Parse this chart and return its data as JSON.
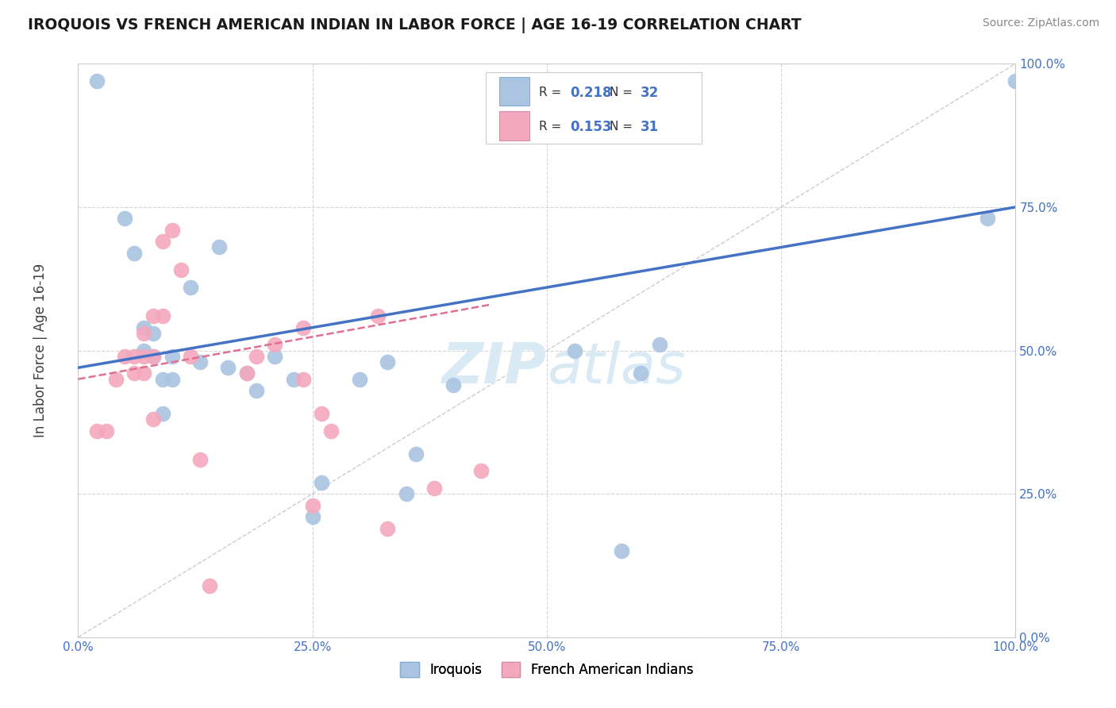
{
  "title": "IROQUOIS VS FRENCH AMERICAN INDIAN IN LABOR FORCE | AGE 16-19 CORRELATION CHART",
  "source": "Source: ZipAtlas.com",
  "ylabel": "In Labor Force | Age 16-19",
  "xlim": [
    0.0,
    1.0
  ],
  "ylim": [
    0.0,
    1.0
  ],
  "xticks": [
    0.0,
    0.25,
    0.5,
    0.75,
    1.0
  ],
  "yticks": [
    0.0,
    0.25,
    0.5,
    0.75,
    1.0
  ],
  "xticklabels": [
    "0.0%",
    "25.0%",
    "50.0%",
    "75.0%",
    "100.0%"
  ],
  "yticklabels": [
    "0.0%",
    "25.0%",
    "50.0%",
    "75.0%",
    "100.0%"
  ],
  "r_iroquois": 0.218,
  "n_iroquois": 32,
  "r_french": 0.153,
  "n_french": 31,
  "iroquois_color": "#aac4e2",
  "french_color": "#f4a8be",
  "iroquois_line_color": "#4472c4",
  "french_line_color": "#e07090",
  "diagonal_color": "#cccccc",
  "legend_label_iroquois": "Iroquois",
  "legend_label_french": "French American Indians",
  "iroquois_scatter_x": [
    0.02,
    0.05,
    0.06,
    0.07,
    0.07,
    0.08,
    0.08,
    0.09,
    0.09,
    0.1,
    0.1,
    0.12,
    0.13,
    0.15,
    0.16,
    0.18,
    0.19,
    0.21,
    0.23,
    0.25,
    0.26,
    0.3,
    0.33,
    0.35,
    0.36,
    0.4,
    0.53,
    0.58,
    0.6,
    0.62,
    0.97,
    1.0
  ],
  "iroquois_scatter_y": [
    0.97,
    0.73,
    0.67,
    0.54,
    0.5,
    0.53,
    0.49,
    0.45,
    0.39,
    0.49,
    0.45,
    0.61,
    0.48,
    0.68,
    0.47,
    0.46,
    0.43,
    0.49,
    0.45,
    0.21,
    0.27,
    0.45,
    0.48,
    0.25,
    0.32,
    0.44,
    0.5,
    0.15,
    0.46,
    0.51,
    0.73,
    0.97
  ],
  "french_scatter_x": [
    0.02,
    0.03,
    0.04,
    0.05,
    0.06,
    0.06,
    0.07,
    0.07,
    0.07,
    0.08,
    0.08,
    0.08,
    0.09,
    0.09,
    0.1,
    0.11,
    0.12,
    0.13,
    0.14,
    0.18,
    0.19,
    0.21,
    0.24,
    0.24,
    0.25,
    0.26,
    0.27,
    0.32,
    0.33,
    0.38,
    0.43
  ],
  "french_scatter_y": [
    0.36,
    0.36,
    0.45,
    0.49,
    0.46,
    0.49,
    0.46,
    0.49,
    0.53,
    0.56,
    0.49,
    0.38,
    0.69,
    0.56,
    0.71,
    0.64,
    0.49,
    0.31,
    0.09,
    0.46,
    0.49,
    0.51,
    0.54,
    0.45,
    0.23,
    0.39,
    0.36,
    0.56,
    0.19,
    0.26,
    0.29
  ],
  "background_color": "#ffffff",
  "grid_color": "#d5d5d5",
  "watermark_color": "#daeaf5"
}
